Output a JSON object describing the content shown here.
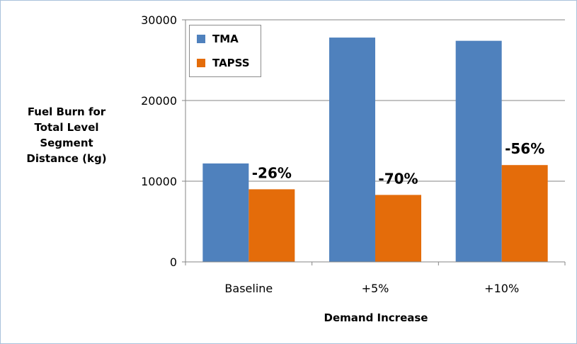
{
  "chart_data": {
    "type": "bar",
    "categories": [
      "Baseline",
      "+5%",
      "+10%"
    ],
    "series": [
      {
        "name": "TMA",
        "values": [
          12200,
          27800,
          27400
        ],
        "color": "#4f81bd"
      },
      {
        "name": "TAPSS",
        "values": [
          9000,
          8300,
          12000
        ],
        "color": "#e46c0a"
      }
    ],
    "annotations": [
      "-26%",
      "-70%",
      "-56%"
    ],
    "ylabel": "Fuel Burn for Total Level Segment Distance (kg)",
    "ylabel_lines": [
      "Fuel Burn for",
      "Total Level",
      "Segment",
      "Distance (kg)"
    ],
    "xlabel": "Demand Increase",
    "ylim": [
      0,
      30000
    ],
    "yticks": [
      0,
      10000,
      20000,
      30000
    ],
    "grid": true,
    "legend_position": "top-left"
  }
}
